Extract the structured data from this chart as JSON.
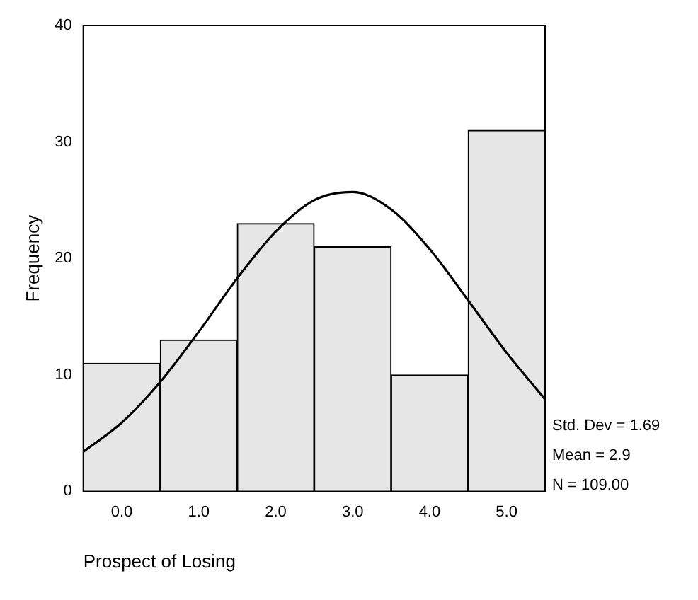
{
  "chart_data": {
    "type": "histogram",
    "xlabel": "Prospect of Losing",
    "ylabel": "Frequency",
    "bins": [
      -0.5,
      0.5,
      1.5,
      2.5,
      3.5,
      4.5,
      5.5
    ],
    "values": [
      11,
      13,
      23,
      21,
      10,
      31
    ],
    "color": "#e6e6e6",
    "series": [
      {
        "type": "line",
        "color": "#000000",
        "x": [
          -0.5,
          0,
          0.5,
          1,
          1.5,
          2,
          2.5,
          3,
          3.5,
          4,
          4.5,
          5,
          5.5
        ],
        "values": [
          3.4,
          5.9,
          9.4,
          13.7,
          18.3,
          22.3,
          25,
          25.7,
          24.2,
          20.8,
          16.4,
          11.9,
          7.9
        ]
      }
    ],
    "xlim": [
      -0.5,
      5.5
    ],
    "xticks": [
      {
        "value": 0,
        "label": "0.0"
      },
      {
        "value": 1,
        "label": "1.0"
      },
      {
        "value": 2,
        "label": "2.0"
      },
      {
        "value": 3,
        "label": "3.0"
      },
      {
        "value": 4,
        "label": "4.0"
      },
      {
        "value": 5,
        "label": "5.0"
      }
    ],
    "ylim": [
      0,
      40
    ],
    "yticks": [
      0,
      10,
      20,
      30,
      40
    ],
    "annotations": [
      "Std. Dev = 1.69",
      "Mean = 2.9",
      "N = 109.00"
    ]
  }
}
